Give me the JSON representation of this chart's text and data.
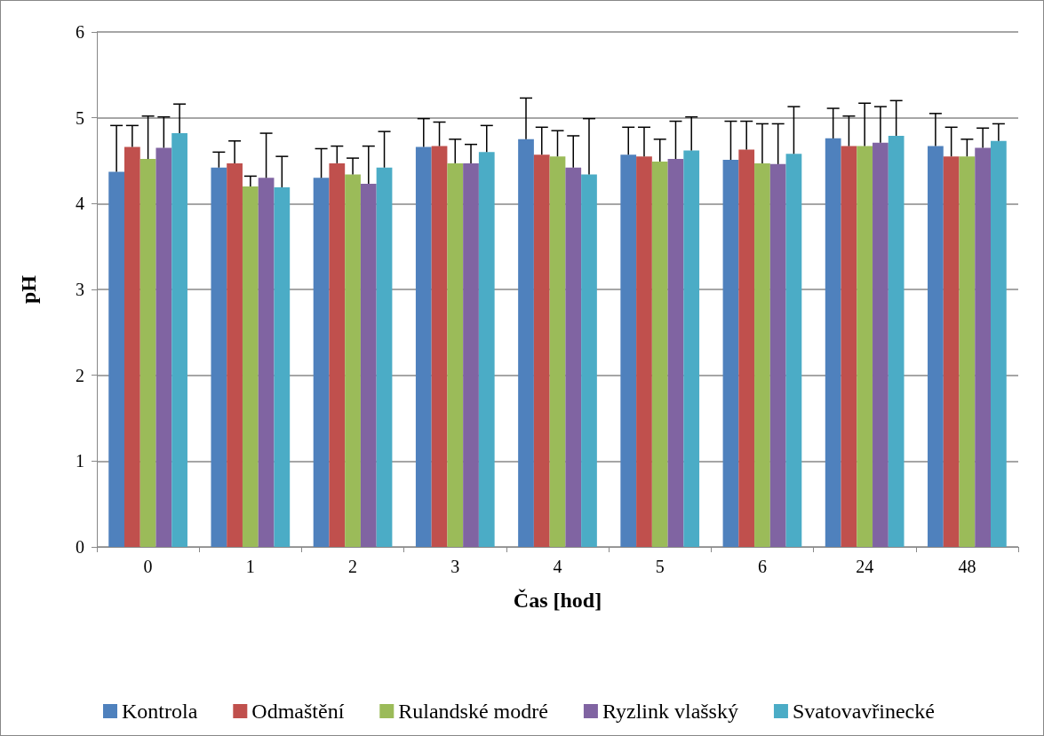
{
  "chart_data": {
    "type": "bar",
    "xlabel": "Čas [hod]",
    "ylabel": "pH",
    "categories": [
      "0",
      "1",
      "2",
      "3",
      "4",
      "5",
      "6",
      "24",
      "48"
    ],
    "ylim": [
      0,
      6
    ],
    "yticks": [
      0,
      1,
      2,
      3,
      4,
      5,
      6
    ],
    "grid": "y",
    "legend": "bottom",
    "series": [
      {
        "name": "Kontrola",
        "color": "#4f81bd",
        "values": [
          4.37,
          4.42,
          4.3,
          4.66,
          4.75,
          4.57,
          4.51,
          4.76,
          4.67
        ],
        "errors": [
          [
            4.37,
            4.91
          ],
          [
            4.42,
            4.6
          ],
          [
            4.3,
            4.64
          ],
          [
            4.66,
            4.99
          ],
          [
            4.75,
            5.23
          ],
          [
            4.57,
            4.89
          ],
          [
            4.51,
            4.96
          ],
          [
            4.76,
            5.11
          ],
          [
            4.67,
            5.05
          ]
        ]
      },
      {
        "name": "Odmaštění",
        "color": "#c0504d",
        "values": [
          4.66,
          4.47,
          4.47,
          4.67,
          4.57,
          4.55,
          4.63,
          4.67,
          4.55
        ],
        "errors": [
          [
            4.66,
            4.91
          ],
          [
            4.47,
            4.73
          ],
          [
            4.47,
            4.67
          ],
          [
            4.67,
            4.95
          ],
          [
            4.57,
            4.89
          ],
          [
            4.55,
            4.89
          ],
          [
            4.63,
            4.96
          ],
          [
            4.67,
            5.02
          ],
          [
            4.55,
            4.89
          ]
        ]
      },
      {
        "name": "Rulandské modré",
        "color": "#9bbb59",
        "values": [
          4.52,
          4.2,
          4.34,
          4.47,
          4.55,
          4.49,
          4.47,
          4.67,
          4.55
        ],
        "errors": [
          [
            4.52,
            5.02
          ],
          [
            4.2,
            4.32
          ],
          [
            4.34,
            4.53
          ],
          [
            4.47,
            4.75
          ],
          [
            4.55,
            4.85
          ],
          [
            4.49,
            4.75
          ],
          [
            4.47,
            4.93
          ],
          [
            4.67,
            5.17
          ],
          [
            4.55,
            4.75
          ]
        ]
      },
      {
        "name": "Ryzlink vlašský",
        "color": "#8064a2",
        "values": [
          4.65,
          4.3,
          4.23,
          4.47,
          4.42,
          4.52,
          4.46,
          4.71,
          4.65
        ],
        "errors": [
          [
            4.65,
            5.01
          ],
          [
            4.3,
            4.82
          ],
          [
            4.23,
            4.67
          ],
          [
            4.47,
            4.69
          ],
          [
            4.42,
            4.79
          ],
          [
            4.52,
            4.96
          ],
          [
            4.46,
            4.93
          ],
          [
            4.71,
            5.13
          ],
          [
            4.65,
            4.88
          ]
        ]
      },
      {
        "name": "Svatovavřinecké",
        "color": "#4bacc6",
        "values": [
          4.82,
          4.19,
          4.42,
          4.6,
          4.34,
          4.62,
          4.58,
          4.79,
          4.73
        ],
        "errors": [
          [
            4.82,
            5.16
          ],
          [
            4.19,
            4.55
          ],
          [
            4.42,
            4.84
          ],
          [
            4.6,
            4.91
          ],
          [
            4.34,
            4.99
          ],
          [
            4.62,
            5.01
          ],
          [
            4.58,
            5.13
          ],
          [
            4.79,
            5.2
          ],
          [
            4.73,
            4.93
          ]
        ]
      }
    ]
  }
}
